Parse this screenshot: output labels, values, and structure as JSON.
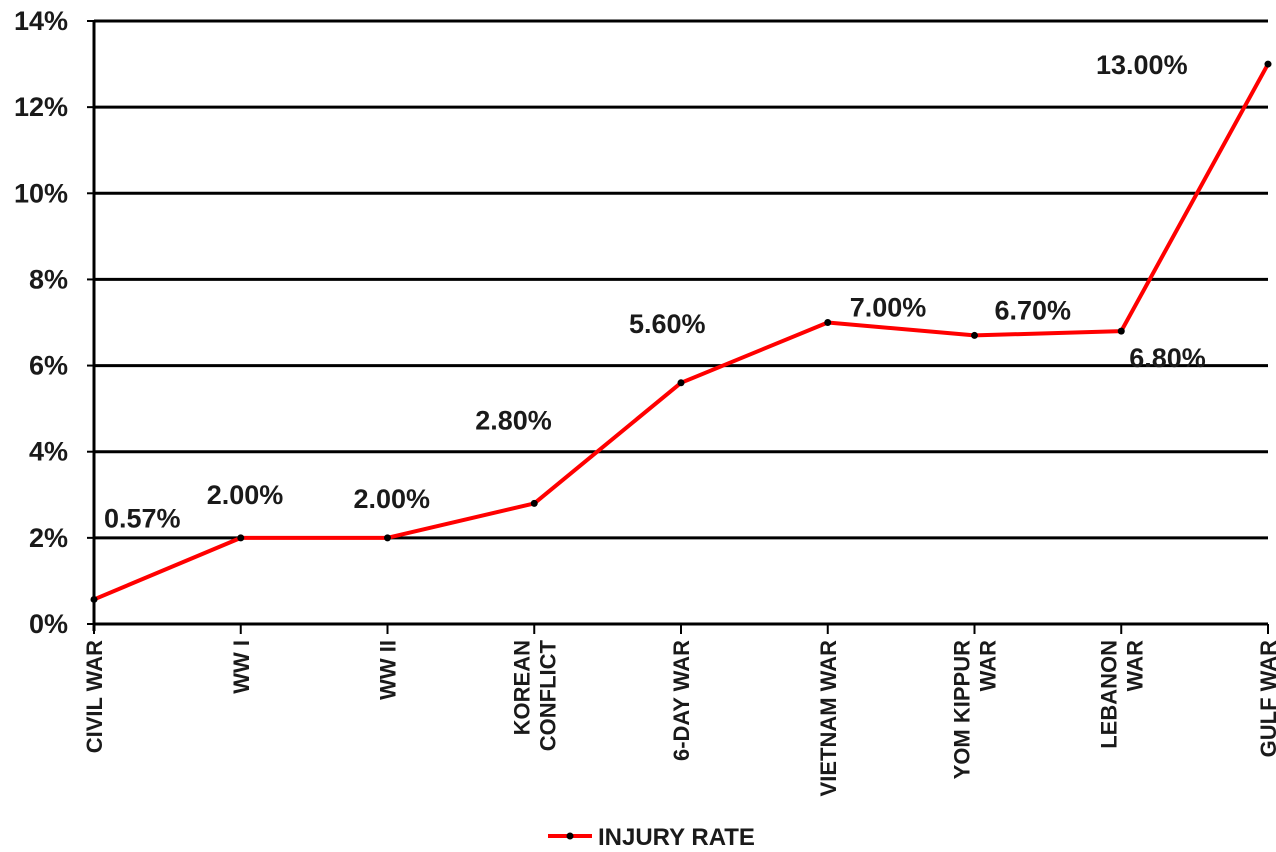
{
  "chart_data": {
    "type": "line",
    "categories": [
      [
        "CIVIL WAR"
      ],
      [
        "WW I"
      ],
      [
        "WW II"
      ],
      [
        "KOREAN",
        "CONFLICT"
      ],
      [
        "6-DAY WAR"
      ],
      [
        "VIETNAM WAR"
      ],
      [
        "YOM KIPPUR",
        "WAR"
      ],
      [
        "LEBANON",
        "WAR"
      ],
      [
        "GULF WAR"
      ]
    ],
    "series": [
      {
        "name": "INJURY RATE",
        "values": [
          0.57,
          2.0,
          2.0,
          2.8,
          5.6,
          7.0,
          6.7,
          6.8,
          13.0
        ],
        "data_labels": [
          "0.57%",
          "2.00%",
          "2.00%",
          "2.80%",
          "5.60%",
          "7.00%",
          "6.70%",
          "6.80%",
          "13.00%"
        ]
      }
    ],
    "y_ticks": [
      "0%",
      "2%",
      "4%",
      "6%",
      "8%",
      "10%",
      "12%",
      "14%"
    ],
    "ylim": [
      0,
      14
    ],
    "grid": true,
    "legend_position": "bottom-center",
    "colors": {
      "line": "#ff0000",
      "marker": "#000000",
      "grid": "#000000"
    }
  }
}
